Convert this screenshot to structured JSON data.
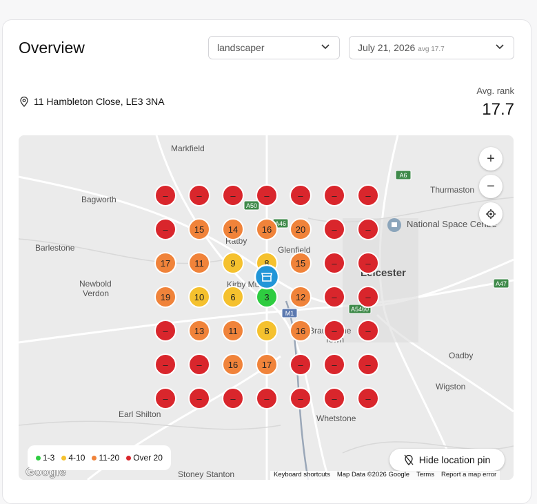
{
  "header": {
    "title": "Overview",
    "keyword": "landscaper",
    "date": "July 21, 2026",
    "date_avg": "avg 17.7"
  },
  "location": {
    "address": "11 Hambleton Close, LE3 3NA",
    "avg_rank_label": "Avg. rank",
    "avg_rank": "17.7"
  },
  "map": {
    "places": [
      "Markfield",
      "Bagworth",
      "Barlestone",
      "Newbold",
      "Verdon",
      "Thurmaston",
      "National Space Centre",
      "Leicester",
      "Oadby",
      "Wigston",
      "Earl Shilton",
      "Whetstone",
      "Stoney Stanton",
      "Glenfield",
      "Ratby",
      "Kirby Muxloe",
      "Braunstone",
      "Town"
    ],
    "roads": [
      "A50",
      "A46",
      "A6",
      "A47",
      "A5460",
      "M1"
    ],
    "grid": [
      [
        "–",
        "–",
        "–",
        "–",
        "–",
        "–",
        "–"
      ],
      [
        "–",
        15,
        14,
        16,
        20,
        "–",
        "–"
      ],
      [
        17,
        11,
        9,
        8,
        15,
        "–",
        "–"
      ],
      [
        19,
        10,
        6,
        3,
        12,
        "–",
        "–"
      ],
      [
        "–",
        13,
        11,
        8,
        16,
        "–",
        "–"
      ],
      [
        "–",
        "–",
        16,
        17,
        "–",
        "–",
        "–"
      ],
      [
        "–",
        "–",
        "–",
        "–",
        "–",
        "–",
        "–"
      ]
    ],
    "legend": [
      {
        "label": "1-3",
        "color": "#2ecc40"
      },
      {
        "label": "4-10",
        "color": "#f5c12e"
      },
      {
        "label": "11-20",
        "color": "#f0833a"
      },
      {
        "label": "Over 20",
        "color": "#d9262c"
      }
    ],
    "zoom_in": "+",
    "zoom_out": "−",
    "hide_pin": "Hide location pin",
    "logo": "Google",
    "footer": [
      "Keyboard shortcuts",
      "Map Data ©2026 Google",
      "Terms",
      "Report a map error"
    ]
  }
}
